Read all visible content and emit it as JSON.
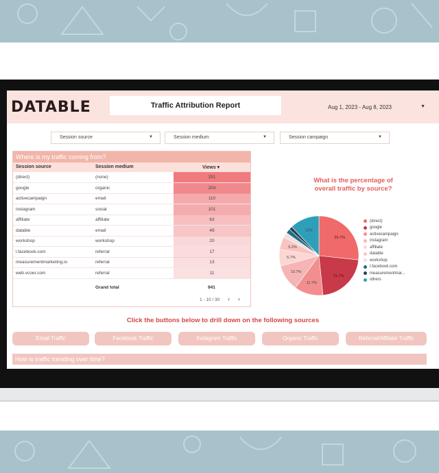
{
  "header": {
    "logo": "DATABLE",
    "title": "Traffic Attribution Report",
    "date_range": "Aug 1, 2023 - Aug 8, 2023"
  },
  "filters": [
    "Session source",
    "Session medium",
    "Session campaign"
  ],
  "table": {
    "title": "Where is my traffic coming from?",
    "columns": [
      "Session source",
      "Session medium",
      "Views"
    ],
    "rows": [
      {
        "source": "(direct)",
        "medium": "(none)",
        "views": "251"
      },
      {
        "source": "google",
        "medium": "organic",
        "views": "204"
      },
      {
        "source": "activecampaign",
        "medium": "email",
        "views": "110"
      },
      {
        "source": "instagram",
        "medium": "social",
        "views": "101"
      },
      {
        "source": "affiliate",
        "medium": "affiliate",
        "views": "63"
      },
      {
        "source": "datable",
        "medium": "email",
        "views": "49"
      },
      {
        "source": "workshop",
        "medium": "workshop",
        "views": "20"
      },
      {
        "source": "l.facebook.com",
        "medium": "referral",
        "views": "17"
      },
      {
        "source": "measurementmarketing.io",
        "medium": "referral",
        "views": "13"
      },
      {
        "source": "web.vcoer.com",
        "medium": "referral",
        "views": "11"
      }
    ],
    "grand_total_label": "Grand total",
    "grand_total": "941",
    "pagination": "1 - 10 / 30"
  },
  "pie": {
    "title_line1": "What is the percentage of",
    "title_line2": "overall traffic by source?",
    "slice_labels": [
      "26.7%",
      "21.7%",
      "11.7%",
      "10.7%",
      "6.7%",
      "5.2%",
      "12%"
    ]
  },
  "chart_data": {
    "type": "pie",
    "title": "What is the percentage of overall traffic by source?",
    "categories": [
      "(direct)",
      "google",
      "activecampaign",
      "instagram",
      "affiliate",
      "datable",
      "workshop",
      "l.facebook.com",
      "measurementmar...",
      "others"
    ],
    "values": [
      26.7,
      21.7,
      11.7,
      10.7,
      6.7,
      5.2,
      2.1,
      1.8,
      1.4,
      12
    ],
    "colors": [
      "#f06a6a",
      "#c8394a",
      "#f28e8e",
      "#f6b5b5",
      "#fbd6d3",
      "#f9c4c0",
      "#efe0de",
      "#1d6e86",
      "#2b3f55",
      "#2e9fb9"
    ],
    "legend": "right"
  },
  "drill": {
    "heading": "Click the buttons below to drill down on the following sources",
    "buttons": [
      "Email Traffic",
      "Facebook Traffic",
      "Instagram Traffic",
      "Organic Traffic",
      "Referral/Affiliate Traffic"
    ]
  },
  "trend": {
    "title": "How is traffic trending over time?"
  },
  "colors": {
    "accent": "#e35d5d",
    "header_bg": "#fbe3df",
    "button_bg": "#f1c6c0"
  }
}
